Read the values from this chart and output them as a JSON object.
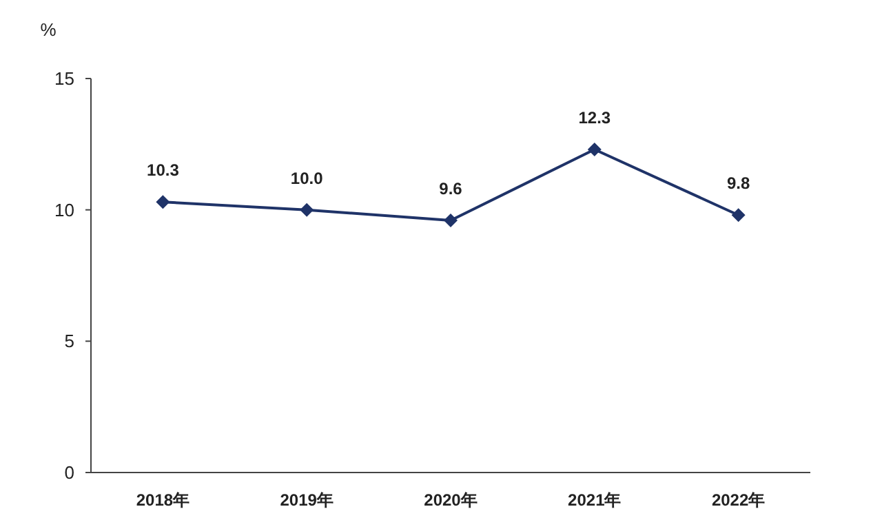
{
  "chart_data": {
    "type": "line",
    "ylabel": "%",
    "categories": [
      "2018年",
      "2019年",
      "2020年",
      "2021年",
      "2022年"
    ],
    "series": [
      {
        "color": "#1f3368",
        "values": [
          10.3,
          10.0,
          9.6,
          12.3,
          9.8
        ]
      }
    ],
    "value_labels": [
      "10.3",
      "10.0",
      "9.6",
      "12.3",
      "9.8"
    ],
    "ylim": [
      0,
      15
    ],
    "yticks": [
      0,
      5,
      10,
      15
    ],
    "marker": "diamond",
    "line_style": "solid",
    "grid": false
  }
}
